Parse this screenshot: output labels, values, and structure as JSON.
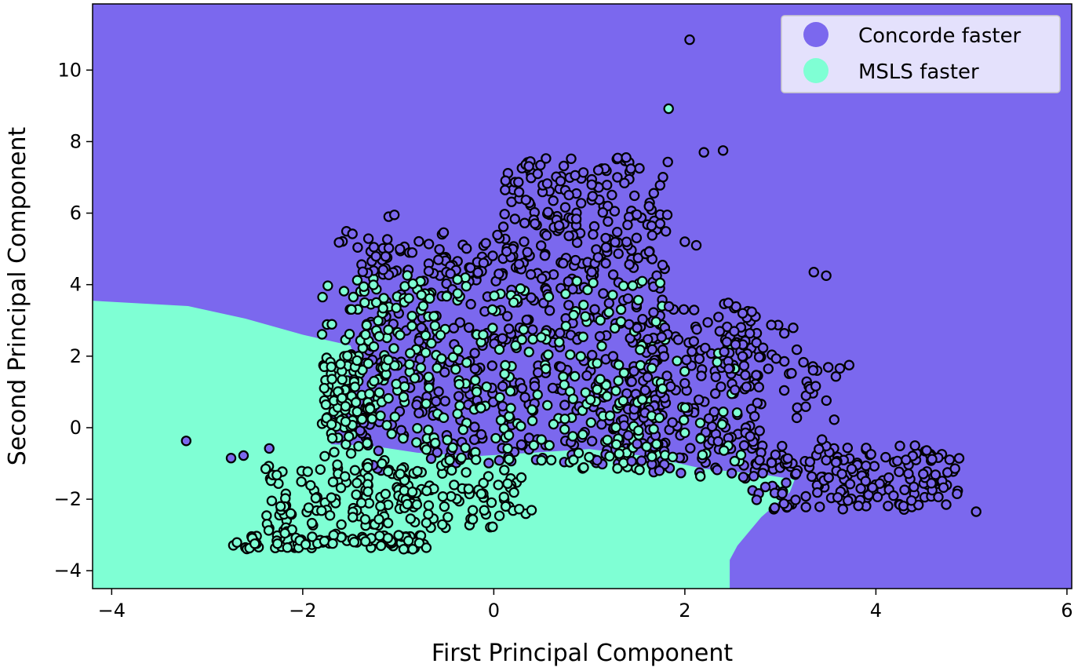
{
  "chart_data": {
    "type": "scatter",
    "title": "",
    "xlabel": "First Principal Component",
    "ylabel": "Second Principal Component",
    "xlim": [
      -4.2,
      6.05
    ],
    "ylim": [
      -4.5,
      11.85
    ],
    "x_ticks": [
      -4,
      -2,
      0,
      2,
      4,
      6
    ],
    "y_ticks": [
      -4,
      -2,
      0,
      2,
      4,
      6,
      8,
      10
    ],
    "x_tick_labels": [
      "−4",
      "−2",
      "0",
      "2",
      "4",
      "6"
    ],
    "y_tick_labels": [
      "−4",
      "−2",
      "0",
      "2",
      "4",
      "6",
      "8",
      "10"
    ],
    "grid": false,
    "legend_position": "top-right",
    "background_region": "Concorde faster",
    "decision_boundary_msls_region": [
      [
        -4.2,
        3.55
      ],
      [
        -3.2,
        3.4
      ],
      [
        -2.6,
        3.05
      ],
      [
        -2.0,
        2.6
      ],
      [
        -1.5,
        2.3
      ],
      [
        -1.45,
        1.9
      ],
      [
        -1.6,
        1.0
      ],
      [
        -1.75,
        0.2
      ],
      [
        -1.7,
        -0.5
      ],
      [
        -1.8,
        -0.75
      ],
      [
        -2.5,
        -0.6
      ],
      [
        -2.5,
        -0.45
      ],
      [
        -1.9,
        -0.45
      ],
      [
        -1.3,
        -0.5
      ],
      [
        -0.8,
        -0.7
      ],
      [
        -0.2,
        -0.8
      ],
      [
        0.4,
        -0.7
      ],
      [
        1.0,
        -0.6
      ],
      [
        1.6,
        -0.8
      ],
      [
        2.2,
        -1.15
      ],
      [
        2.8,
        -1.3
      ],
      [
        3.15,
        -1.45
      ],
      [
        3.1,
        -1.8
      ],
      [
        2.8,
        -2.5
      ],
      [
        2.55,
        -3.3
      ],
      [
        2.47,
        -3.7
      ],
      [
        2.47,
        -4.5
      ],
      [
        -4.2,
        -4.5
      ]
    ],
    "clusters": [
      {
        "series": "Concorde faster",
        "n": 360,
        "x": [
          -1.4,
          1.8
        ],
        "y": [
          -1.2,
          4.8
        ],
        "seed": 11
      },
      {
        "series": "MSLS faster",
        "n": 320,
        "x": [
          -1.8,
          1.8
        ],
        "y": [
          -1.3,
          4.2
        ],
        "seed": 12
      },
      {
        "series": "Concorde faster",
        "n": 200,
        "x": [
          1.4,
          2.8
        ],
        "y": [
          -1.3,
          3.5
        ],
        "seed": 13
      },
      {
        "series": "Concorde faster",
        "n": 170,
        "x": [
          2.6,
          4.9
        ],
        "y": [
          -2.3,
          -0.5
        ],
        "seed": 14
      },
      {
        "series": "MSLS faster",
        "n": 40,
        "x": [
          1.5,
          2.6
        ],
        "y": [
          -1.4,
          2.5
        ],
        "seed": 15
      },
      {
        "series": "Concorde faster",
        "n": 170,
        "x": [
          0.1,
          1.9
        ],
        "y": [
          4.5,
          7.6
        ],
        "seed": 16
      },
      {
        "series": "Concorde faster",
        "n": 60,
        "x": [
          -1.6,
          0.4
        ],
        "y": [
          4.2,
          5.5
        ],
        "seed": 17
      },
      {
        "series": "MSLS faster",
        "n": 140,
        "x": [
          -2.4,
          -0.8
        ],
        "y": [
          -3.4,
          -1.0
        ],
        "seed": 18
      },
      {
        "series": "MSLS faster",
        "n": 70,
        "x": [
          -1.0,
          0.4
        ],
        "y": [
          -2.8,
          -1.2
        ],
        "seed": 19
      },
      {
        "series": "MSLS faster",
        "n": 60,
        "x": [
          -2.8,
          -0.7
        ],
        "y": [
          -3.4,
          -3.0
        ],
        "seed": 20
      },
      {
        "series": "MSLS faster",
        "n": 80,
        "x": [
          -1.8,
          -1.1
        ],
        "y": [
          0.0,
          2.1
        ],
        "seed": 21
      },
      {
        "series": "MSLS faster",
        "n": 40,
        "x": [
          -1.5,
          -0.5
        ],
        "y": [
          1.5,
          4.3
        ],
        "seed": 22
      },
      {
        "series": "Concorde faster",
        "n": 35,
        "x": [
          2.4,
          3.3
        ],
        "y": [
          1.0,
          3.0
        ],
        "seed": 23
      },
      {
        "series": "Concorde faster",
        "n": 25,
        "x": [
          3.0,
          3.7
        ],
        "y": [
          -1.0,
          1.8
        ],
        "seed": 24
      }
    ],
    "outliers": [
      {
        "series": "Concorde faster",
        "x": 2.05,
        "y": 10.85
      },
      {
        "series": "MSLS faster",
        "x": 1.83,
        "y": 8.92
      },
      {
        "series": "Concorde faster",
        "x": -3.22,
        "y": -0.37
      },
      {
        "series": "Concorde faster",
        "x": -2.75,
        "y": -0.85
      },
      {
        "series": "Concorde faster",
        "x": -2.62,
        "y": -0.78
      },
      {
        "series": "Concorde faster",
        "x": -2.35,
        "y": -0.58
      },
      {
        "series": "Concorde faster",
        "x": -1.62,
        "y": 5.18
      },
      {
        "series": "Concorde faster",
        "x": -1.48,
        "y": 5.42
      },
      {
        "series": "Concorde faster",
        "x": -1.1,
        "y": 5.9
      },
      {
        "series": "Concorde faster",
        "x": -1.04,
        "y": 5.95
      },
      {
        "series": "Concorde faster",
        "x": 5.05,
        "y": -2.35
      },
      {
        "series": "Concorde faster",
        "x": 4.85,
        "y": -1.85
      },
      {
        "series": "Concorde faster",
        "x": 3.35,
        "y": 4.35
      },
      {
        "series": "Concorde faster",
        "x": 3.48,
        "y": 4.25
      },
      {
        "series": "Concorde faster",
        "x": 3.6,
        "y": -1.95
      },
      {
        "series": "Concorde faster",
        "x": 3.72,
        "y": 1.75
      },
      {
        "series": "Concorde faster",
        "x": 2.2,
        "y": 7.7
      },
      {
        "series": "Concorde faster",
        "x": 2.4,
        "y": 7.75
      },
      {
        "series": "Concorde faster",
        "x": 2.0,
        "y": 5.2
      },
      {
        "series": "Concorde faster",
        "x": 2.12,
        "y": 5.1
      }
    ],
    "series": [
      {
        "name": "Concorde faster",
        "color": "#7b68ee"
      },
      {
        "name": "MSLS faster",
        "color": "#7fffd4"
      }
    ]
  }
}
